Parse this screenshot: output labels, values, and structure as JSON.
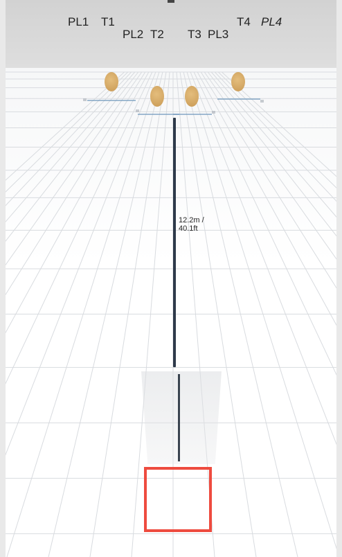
{
  "scene": {
    "labels": [
      {
        "id": "pl1",
        "text": "PL1"
      },
      {
        "id": "t1",
        "text": "T1"
      },
      {
        "id": "pl2",
        "text": "PL2"
      },
      {
        "id": "t2",
        "text": "T2"
      },
      {
        "id": "t3",
        "text": "T3"
      },
      {
        "id": "pl3",
        "text": "PL3"
      },
      {
        "id": "t4",
        "text": "T4"
      },
      {
        "id": "pl4",
        "text": "PL4"
      }
    ],
    "distance": {
      "metric": "12.2m /",
      "imperial": "40.1ft"
    },
    "colors": {
      "target": "#d4a866",
      "start_box": "#ee4b3f",
      "measure_line": "#2e3a4a",
      "grid_line": "#d8dbdf",
      "sky": "#d8d8d8"
    },
    "icons": {
      "target": "target-silhouette-icon",
      "start": "start-position-box"
    }
  }
}
